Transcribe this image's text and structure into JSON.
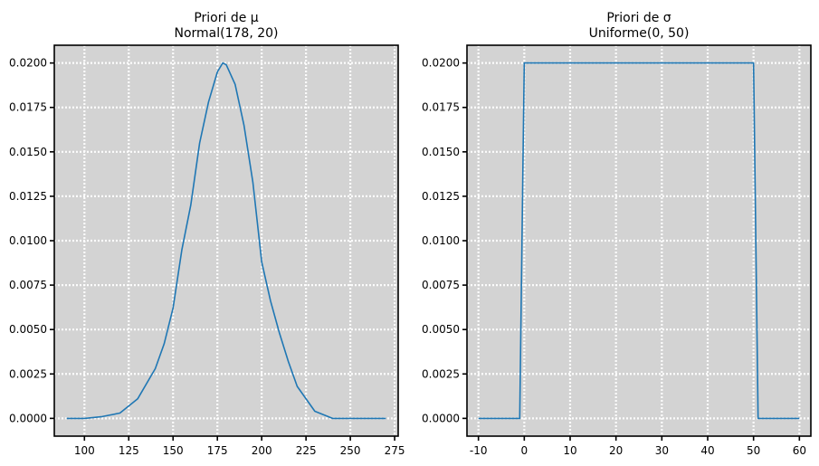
{
  "chart_data": [
    {
      "type": "line",
      "title": "Priori de μ",
      "subtitle": "Normal(178, 20)",
      "xlabel": "",
      "ylabel": "",
      "xlim": [
        83,
        277
      ],
      "ylim": [
        -0.001,
        0.021
      ],
      "xticks": [
        100,
        125,
        150,
        175,
        200,
        225,
        250,
        275
      ],
      "yticks": [
        0.0,
        0.0025,
        0.005,
        0.0075,
        0.01,
        0.0125,
        0.015,
        0.0175,
        0.02
      ],
      "ytick_labels": [
        "0.0000",
        "0.0025",
        "0.0050",
        "0.0075",
        "0.0100",
        "0.0125",
        "0.0150",
        "0.0175",
        "0.0200"
      ],
      "grid": true,
      "color": "#1f77b4",
      "series": [
        {
          "x": [
            90,
            100,
            110,
            120,
            130,
            140,
            145,
            150,
            155,
            160,
            165,
            170,
            175,
            178,
            180,
            185,
            190,
            195,
            200,
            205,
            210,
            215,
            220,
            230,
            240,
            250,
            260,
            270
          ],
          "values": [
            0.0,
            0.0,
            0.0001,
            0.0003,
            0.0011,
            0.0028,
            0.0042,
            0.0062,
            0.0095,
            0.012,
            0.0155,
            0.0178,
            0.0195,
            0.02,
            0.0199,
            0.0188,
            0.0165,
            0.0133,
            0.0088,
            0.0066,
            0.0048,
            0.0032,
            0.0018,
            0.0004,
            0.0,
            0.0,
            0.0,
            0.0
          ]
        }
      ]
    },
    {
      "type": "line",
      "title": "Priori de σ",
      "subtitle": "Uniforme(0, 50)",
      "xlabel": "",
      "ylabel": "",
      "xlim": [
        -12.5,
        62.5
      ],
      "ylim": [
        -0.001,
        0.021
      ],
      "xticks": [
        -10,
        0,
        10,
        20,
        30,
        40,
        50,
        60
      ],
      "yticks": [
        0.0,
        0.0025,
        0.005,
        0.0075,
        0.01,
        0.0125,
        0.015,
        0.0175,
        0.02
      ],
      "ytick_labels": [
        "0.0000",
        "0.0025",
        "0.0050",
        "0.0075",
        "0.0100",
        "0.0125",
        "0.0150",
        "0.0175",
        "0.0200"
      ],
      "grid": true,
      "color": "#1f77b4",
      "series": [
        {
          "x": [
            -10,
            -1,
            -1,
            0,
            50,
            51,
            51,
            60
          ],
          "values": [
            0.0,
            0.0,
            0.0,
            0.02,
            0.02,
            0.0,
            0.0,
            0.0
          ]
        }
      ]
    }
  ]
}
